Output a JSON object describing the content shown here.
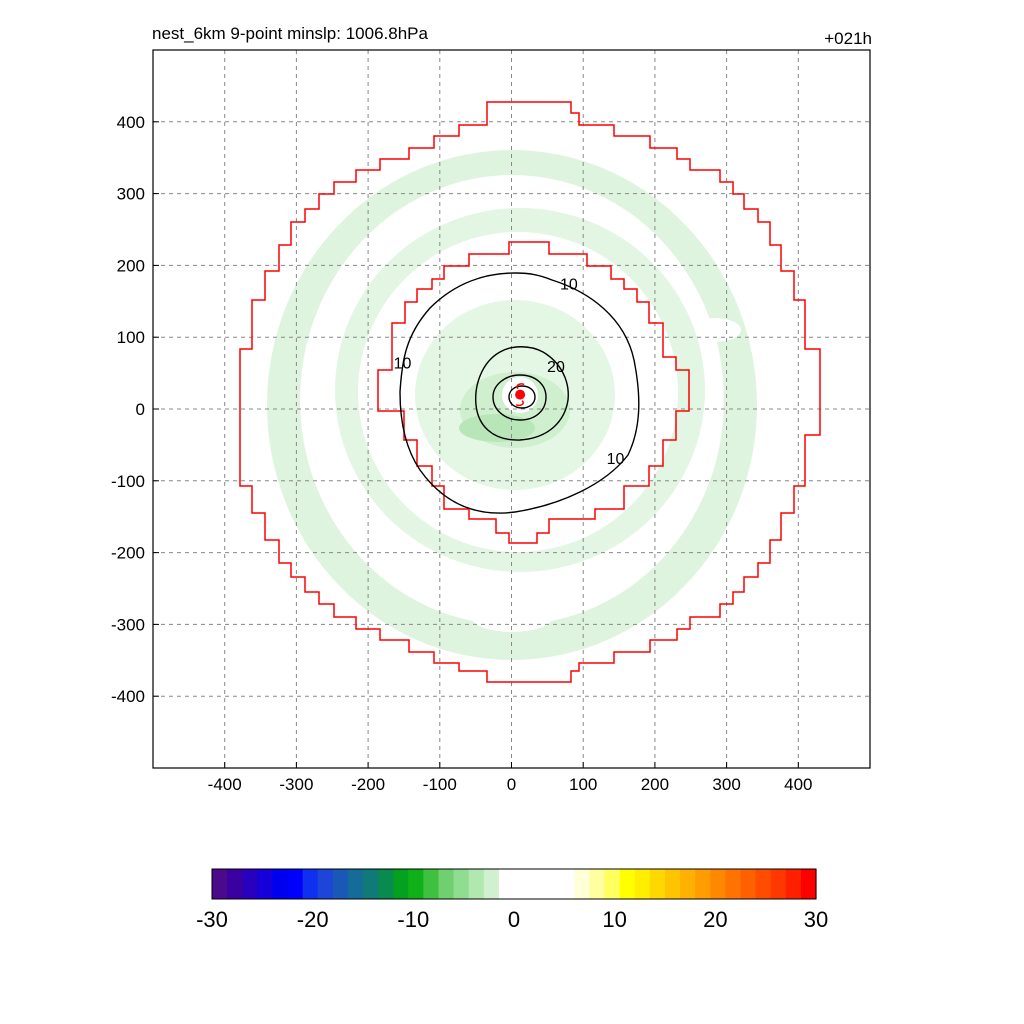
{
  "chart_data": {
    "type": "contour",
    "title": "nest_6km  9-point minslp: 1006.8hPa",
    "time_label": "+021h",
    "x_ticks": [
      -400,
      -300,
      -200,
      -100,
      0,
      100,
      200,
      300,
      400
    ],
    "y_ticks": [
      400,
      300,
      200,
      100,
      0,
      -100,
      -200,
      -300,
      -400
    ],
    "xlim": [
      -500,
      500
    ],
    "ylim": [
      -500,
      500
    ],
    "grid": true,
    "contour_labels": [
      {
        "text": "10",
        "x": 80,
        "y": 175
      },
      {
        "text": "20",
        "x": 62,
        "y": 60
      },
      {
        "text": "10",
        "x": -152,
        "y": 65
      },
      {
        "text": "10",
        "x": 145,
        "y": -68
      }
    ],
    "center_marker": {
      "x": 12,
      "y": 20,
      "color": "#ff0000"
    },
    "colorbar": {
      "ticks": [
        "-30",
        "-20",
        "-10",
        "0",
        "10",
        "20",
        "30"
      ],
      "range": [
        -30,
        30
      ],
      "colors": [
        "#4b0a8c",
        "#3a00a0",
        "#2a00bf",
        "#1500da",
        "#0000f0",
        "#0000ff",
        "#1030f0",
        "#1e44d8",
        "#1a58b8",
        "#166c98",
        "#0f7a78",
        "#088a50",
        "#04a020",
        "#10b018",
        "#40c040",
        "#70d070",
        "#90dc90",
        "#b0e8b0",
        "#d0f0d0",
        "#ffffff",
        "#ffffff",
        "#ffffff",
        "#ffffff",
        "#ffffff",
        "#ffffd8",
        "#ffffa0",
        "#ffff60",
        "#ffff00",
        "#ffee00",
        "#ffd800",
        "#ffc400",
        "#ffb000",
        "#ff9c00",
        "#ff8800",
        "#ff7400",
        "#ff6000",
        "#ff4c00",
        "#ff3800",
        "#ff2000",
        "#ff0000"
      ]
    }
  }
}
